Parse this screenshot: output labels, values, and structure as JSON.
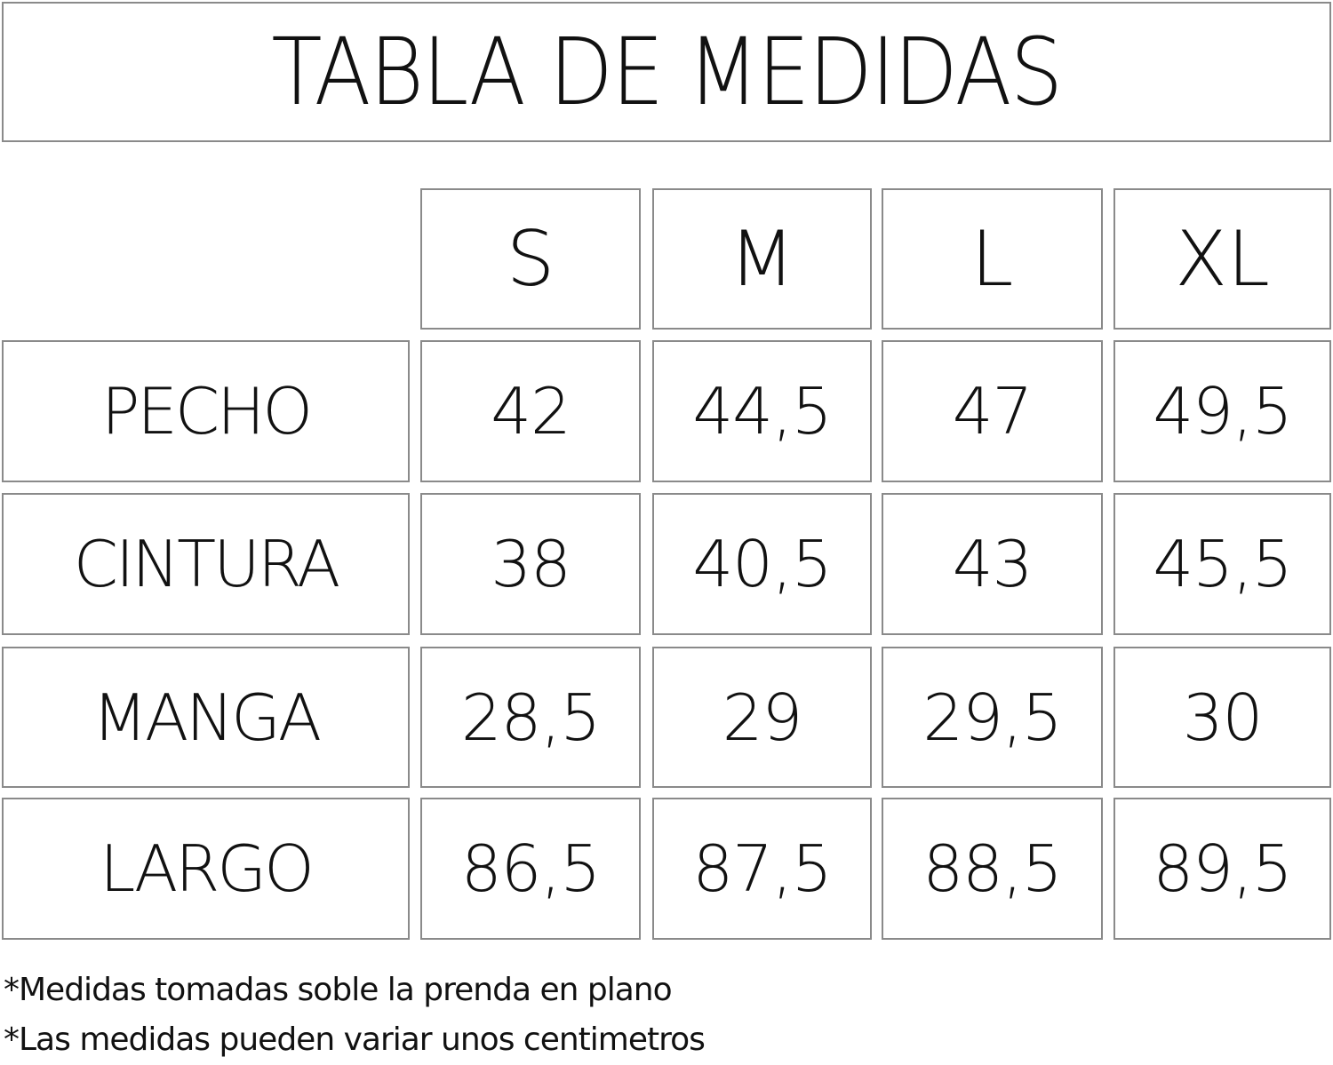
{
  "title": "TABLA DE MEDIDAS",
  "sizes": [
    "S",
    "M",
    "L",
    "XL"
  ],
  "rows": [
    {
      "label": "PECHO",
      "values": [
        "42",
        "44,5",
        "47",
        "49,5"
      ]
    },
    {
      "label": "CINTURA",
      "values": [
        "38",
        "40,5",
        "43",
        "45,5"
      ]
    },
    {
      "label": "MANGA",
      "values": [
        "28,5",
        "29",
        "29,5",
        "30"
      ]
    },
    {
      "label": "LARGO",
      "values": [
        "86,5",
        "87,5",
        "88,5",
        "89,5"
      ]
    }
  ],
  "notes": [
    "*Medidas tomadas soble la prenda en plano",
    "*Las medidas pueden variar unos centimetros"
  ],
  "colors": {
    "border": "#8a8a8a",
    "text": "#111111",
    "background": "#ffffff"
  }
}
